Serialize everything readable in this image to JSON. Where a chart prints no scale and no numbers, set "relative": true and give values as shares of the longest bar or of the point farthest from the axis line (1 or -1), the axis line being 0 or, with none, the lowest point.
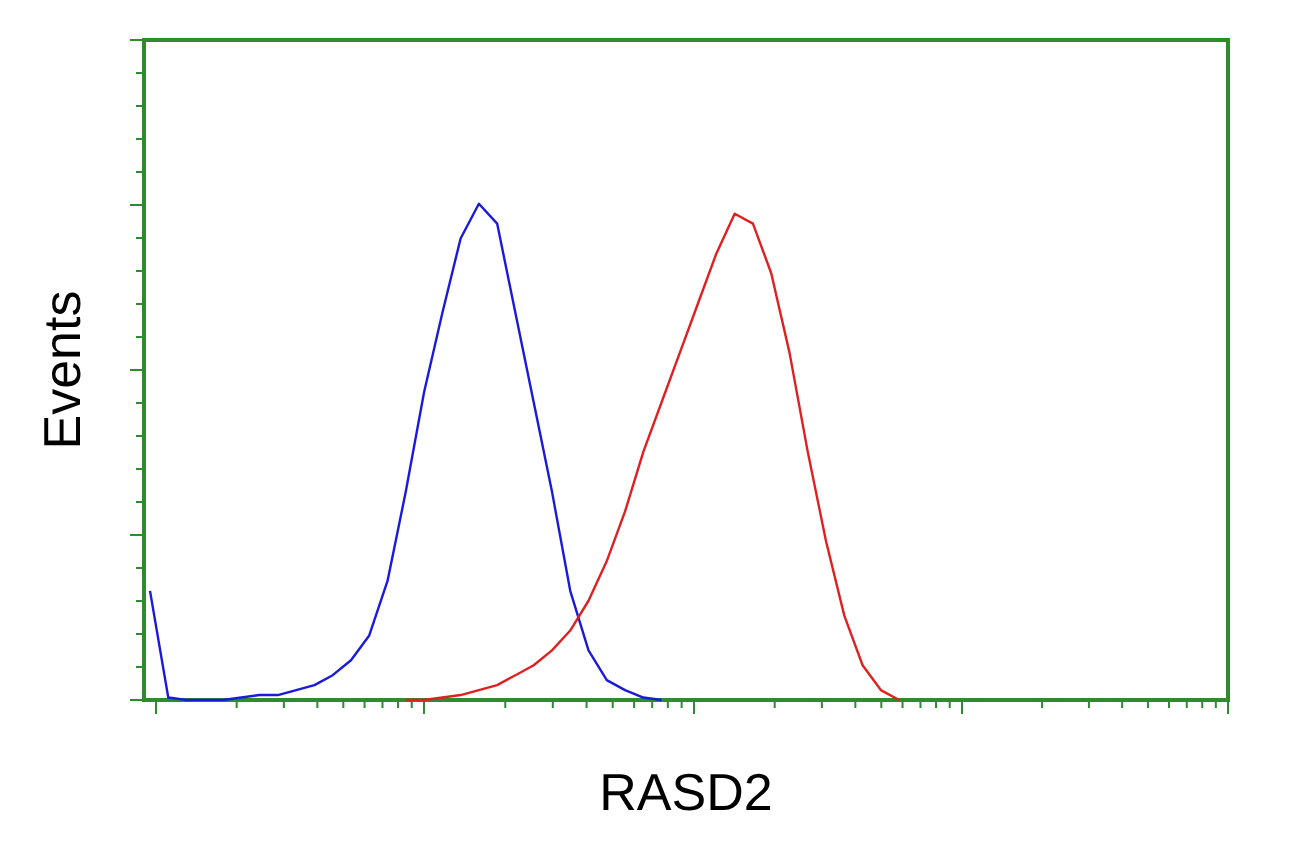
{
  "chart_data": {
    "type": "line",
    "relative": true,
    "xlabel": "RASD2",
    "ylabel": "Events",
    "line_style": "solid",
    "categories": [
      null,
      null,
      null,
      null,
      null,
      null,
      null,
      null,
      null,
      null,
      null,
      null,
      null,
      null,
      null,
      null,
      null,
      null,
      null,
      null,
      null,
      null,
      null,
      null,
      null,
      null,
      null,
      null,
      null,
      null,
      null,
      null,
      null,
      null,
      null,
      null,
      null,
      null,
      null,
      null,
      null,
      null,
      null,
      null,
      null,
      null,
      null,
      null,
      null,
      null,
      null,
      null,
      null,
      null,
      null,
      null,
      null,
      null,
      null,
      null
    ],
    "series": [
      {
        "color": "#1a1adb",
        "values": [
          0.22,
          0.005,
          0,
          0,
          0,
          0.005,
          0.01,
          0.01,
          0.02,
          0.03,
          0.05,
          0.08,
          0.13,
          0.24,
          0.42,
          0.62,
          0.78,
          0.93,
          1.0,
          0.96,
          0.78,
          0.6,
          0.42,
          0.22,
          0.1,
          0.04,
          0.02,
          0.005,
          0,
          null,
          null,
          null,
          null,
          null,
          null,
          null,
          null,
          null,
          null,
          null,
          null,
          null,
          null,
          null,
          null,
          null,
          null,
          null,
          null,
          null,
          null,
          null,
          null,
          null,
          null,
          null,
          null,
          null,
          null,
          null
        ]
      },
      {
        "color": "#e02020",
        "values": [
          null,
          null,
          null,
          null,
          null,
          null,
          null,
          null,
          null,
          null,
          null,
          null,
          null,
          null,
          0,
          0,
          0.005,
          0.01,
          0.02,
          0.03,
          0.05,
          0.07,
          0.1,
          0.14,
          0.2,
          0.28,
          0.38,
          0.5,
          0.6,
          0.7,
          0.8,
          0.9,
          0.98,
          0.96,
          0.86,
          0.7,
          0.5,
          0.32,
          0.17,
          0.07,
          0.02,
          0,
          null,
          null,
          null,
          null,
          null,
          null,
          null,
          null,
          null,
          null,
          null,
          null,
          null,
          null,
          null,
          null,
          null,
          null
        ]
      }
    ]
  }
}
